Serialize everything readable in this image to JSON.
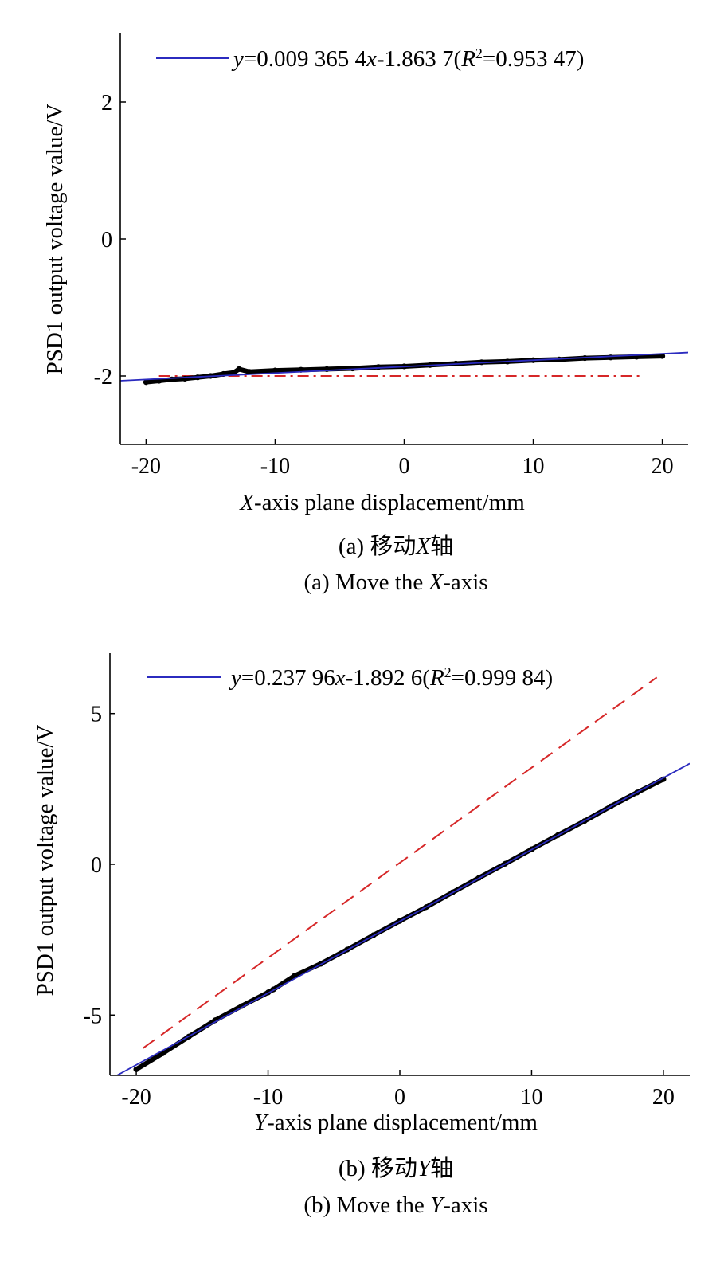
{
  "chart_data": [
    {
      "type": "scatter",
      "panel": "a",
      "xlabel": {
        "var": "X",
        "rest": "-axis plane displacement/mm"
      },
      "ylabel": "PSD1 output voltage value/V",
      "xlim": [
        -22,
        22
      ],
      "ylim": [
        -3,
        3
      ],
      "xticks": [
        -20,
        -10,
        0,
        10,
        20
      ],
      "yticks": [
        -2,
        0,
        2
      ],
      "xtick_labels": [
        "-20",
        "-10",
        "0",
        "10",
        "20"
      ],
      "ytick_labels": [
        "-2",
        "0",
        "2"
      ],
      "fit": {
        "slope": 0.0093654,
        "intercept": -1.8637,
        "x_range": [
          -22,
          22
        ],
        "color": "#2b2bbf",
        "legend": {
          "y": "y",
          "eq1": "=0.009 365 4",
          "x": "x",
          "eq2": "-1.863 7(",
          "R": "R",
          "sup": "2",
          "eq3": "=0.953 47)"
        }
      },
      "reference": {
        "x": [
          -19,
          18.5
        ],
        "y": [
          -2.0,
          -2.0
        ],
        "style": "dash-dot",
        "color": "#d62728"
      },
      "measured": {
        "color": "#000000",
        "x": [
          -20,
          -19,
          -18,
          -17,
          -16,
          -15,
          -14,
          -13.2,
          -12.8,
          -12,
          -10,
          -8,
          -6,
          -4,
          -2,
          0,
          2,
          4,
          6,
          8,
          10,
          12,
          14,
          16,
          18,
          20
        ],
        "y": [
          -2.09,
          -2.07,
          -2.05,
          -2.04,
          -2.02,
          -2.0,
          -1.97,
          -1.95,
          -1.9,
          -1.94,
          -1.92,
          -1.91,
          -1.9,
          -1.89,
          -1.87,
          -1.86,
          -1.84,
          -1.82,
          -1.8,
          -1.79,
          -1.77,
          -1.76,
          -1.74,
          -1.73,
          -1.72,
          -1.71
        ]
      },
      "caption_cn": {
        "prefix": "(a) 移动",
        "var": "X",
        "suffix": "轴"
      },
      "caption_en": {
        "prefix": "(a) Move the ",
        "var": "X",
        "suffix": "-axis"
      }
    },
    {
      "type": "scatter",
      "panel": "b",
      "xlabel": {
        "var": "Y",
        "rest": "-axis plane displacement/mm"
      },
      "ylabel": "PSD1 output voltage value/V",
      "xlim": [
        -22,
        22
      ],
      "ylim": [
        -7,
        7
      ],
      "xticks": [
        -20,
        -10,
        0,
        10,
        20
      ],
      "yticks": [
        -5,
        0,
        5
      ],
      "xtick_labels": [
        "-20",
        "-10",
        "0",
        "10",
        "20"
      ],
      "ytick_labels": [
        "-5",
        "0",
        "5"
      ],
      "fit": {
        "slope": 0.23796,
        "intercept": -1.8926,
        "x_range": [
          -22,
          22
        ],
        "color": "#2b2bbf",
        "legend": {
          "y": "y",
          "eq1": "=0.237 96",
          "x": "x",
          "eq2": "-1.892 6(",
          "R": "R",
          "sup": "2",
          "eq3": "=0.999 84)"
        }
      },
      "reference": {
        "x": [
          -19.5,
          19.5
        ],
        "y": [
          -6.1,
          6.2
        ],
        "style": "dashed",
        "color": "#d62728"
      },
      "measured": {
        "color": "#000000",
        "x": [
          -20,
          -18,
          -16,
          -14,
          -12,
          -10,
          -9.6,
          -8,
          -6,
          -4,
          -2,
          0,
          2,
          4,
          6,
          8,
          10,
          12,
          14,
          16,
          18,
          20
        ],
        "y": [
          -6.8,
          -6.27,
          -5.71,
          -5.17,
          -4.7,
          -4.25,
          -4.15,
          -3.7,
          -3.3,
          -2.83,
          -2.35,
          -1.88,
          -1.42,
          -0.93,
          -0.45,
          0.02,
          0.5,
          0.97,
          1.43,
          1.92,
          2.38,
          2.82
        ]
      },
      "caption_cn": {
        "prefix": "(b) 移动",
        "var": "Y",
        "suffix": "轴"
      },
      "caption_en": {
        "prefix": "(b) Move the ",
        "var": "Y",
        "suffix": "-axis"
      }
    }
  ]
}
